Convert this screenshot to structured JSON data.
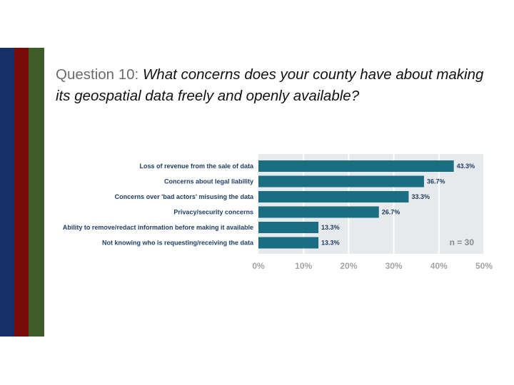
{
  "colors": {
    "stripe_blue": "#16306a",
    "stripe_red": "#7a0b0b",
    "stripe_green": "#3e5c28",
    "bar": "#1b6e82",
    "plot_bg": "#e6eaec",
    "grid": "#ffffff"
  },
  "heading": {
    "prefix": "Question 10:",
    "question": "What concerns does your county have about making its geospatial data freely and openly available?"
  },
  "chart_data": {
    "type": "bar",
    "orientation": "horizontal",
    "categories": [
      "Loss of revenue from the sale of data",
      "Concerns about legal liability",
      "Concerns over 'bad actors' misusing the data",
      "Privacy/security concerns",
      "Ability to remove/redact information before making it available",
      "Not knowing who is requesting/receiving the data"
    ],
    "values": [
      43.3,
      36.7,
      33.3,
      26.7,
      13.3,
      13.3
    ],
    "value_labels": [
      "43.3%",
      "36.7%",
      "33.3%",
      "26.7%",
      "13.3%",
      "13.3%"
    ],
    "xlim": [
      0,
      50
    ],
    "xticks": [
      0,
      10,
      20,
      30,
      40,
      50
    ],
    "xtick_labels": [
      "0%",
      "10%",
      "20%",
      "30%",
      "40%",
      "50%"
    ],
    "grid": true,
    "annotation": "n = 30"
  }
}
